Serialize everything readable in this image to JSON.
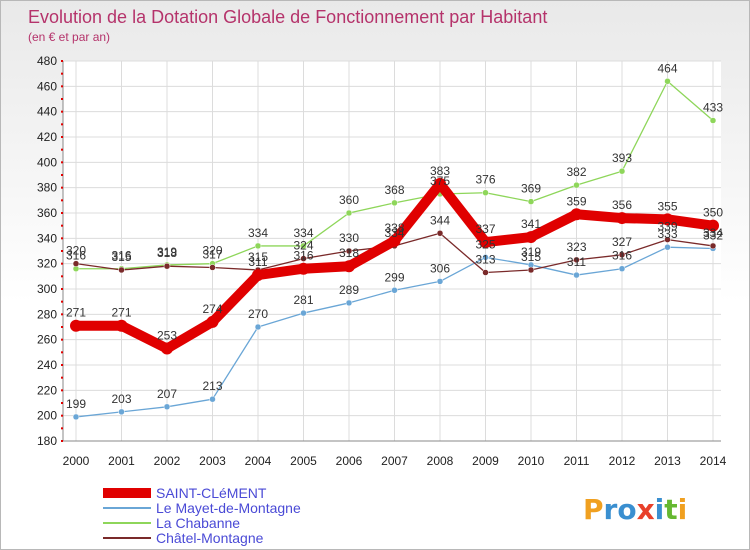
{
  "chart_data": {
    "type": "line",
    "title": "Evolution de la Dotation Globale de Fonctionnement par Habitant",
    "subtitle": "(en € et par an)",
    "xlabel": "",
    "ylabel": "",
    "x": [
      "2000",
      "2001",
      "2002",
      "2003",
      "2004",
      "2005",
      "2006",
      "2007",
      "2008",
      "2009",
      "2010",
      "2011",
      "2012",
      "2013",
      "2014"
    ],
    "ylim": [
      180,
      480
    ],
    "yticks": [
      180,
      200,
      220,
      240,
      260,
      280,
      300,
      320,
      340,
      360,
      380,
      400,
      420,
      440,
      460,
      480
    ],
    "grid": true,
    "legend_position": "bottom-left",
    "series": [
      {
        "name": "SAINT-CLéMENT",
        "color": "#e00000",
        "values": [
          271,
          271,
          253,
          274,
          311,
          316,
          318,
          338,
          383,
          337,
          341,
          359,
          356,
          355,
          350
        ]
      },
      {
        "name": "Le Mayet-de-Montagne",
        "color": "#6aa6d6",
        "values": [
          199,
          203,
          207,
          213,
          270,
          281,
          289,
          299,
          306,
          325,
          319,
          311,
          316,
          333,
          332
        ]
      },
      {
        "name": "La Chabanne",
        "color": "#8ed65a",
        "values": [
          316,
          316,
          319,
          320,
          334,
          334,
          360,
          368,
          375,
          376,
          369,
          382,
          393,
          464,
          433
        ]
      },
      {
        "name": "Châtel-Montagne",
        "color": "#7a2a2a",
        "values": [
          320,
          315,
          318,
          317,
          315,
          324,
          330,
          334,
          344,
          313,
          315,
          323,
          327,
          339,
          334
        ]
      }
    ]
  },
  "brand": {
    "text": "Proxiti"
  }
}
